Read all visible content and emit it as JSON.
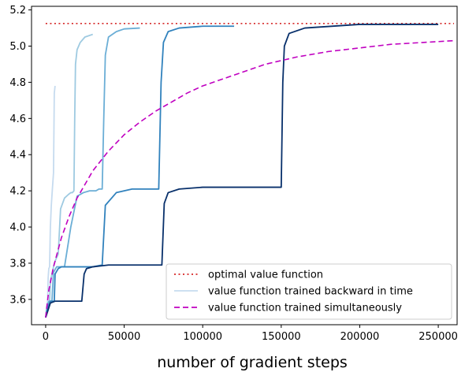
{
  "chart_data": {
    "type": "line",
    "title": "",
    "xlabel": "number of gradient steps",
    "ylabel": "",
    "xlim": [
      -9000,
      262000
    ],
    "ylim": [
      3.46,
      5.22
    ],
    "x_ticks": [
      0,
      50000,
      100000,
      150000,
      200000,
      250000
    ],
    "x_tick_labels": [
      "0",
      "50000",
      "100000",
      "150000",
      "200000",
      "250000"
    ],
    "y_ticks": [
      3.6,
      3.8,
      4.0,
      4.2,
      4.4,
      4.6,
      4.8,
      5.0,
      5.2
    ],
    "y_tick_labels": [
      "3.6",
      "3.8",
      "4.0",
      "4.2",
      "4.4",
      "4.6",
      "4.8",
      "5.0",
      "5.2"
    ],
    "grid": false,
    "legend_position": "bottom-right",
    "legend": [
      {
        "label": "optimal value function",
        "style": "dotted",
        "color": "#d62728"
      },
      {
        "label": "value function trained backward in time",
        "style": "solid",
        "color": "#c6dbef"
      },
      {
        "label": "value function trained simultaneously",
        "style": "dashed",
        "color": "#c000c0"
      }
    ],
    "series": [
      {
        "name": "optimal value function",
        "style": "dotted",
        "color": "#d62728",
        "x": [
          0,
          260000
        ],
        "y": [
          5.125,
          5.125
        ]
      },
      {
        "name": "value function trained backward in time",
        "style": "solid",
        "color": "#c6dbef",
        "x": [
          0,
          600,
          1200,
          1600,
          2000,
          2500,
          3000,
          3600,
          4200,
          5000,
          5500,
          6000
        ],
        "y": [
          3.5,
          3.56,
          3.59,
          3.72,
          3.77,
          3.78,
          4.0,
          4.12,
          4.2,
          4.3,
          4.74,
          4.78
        ]
      },
      {
        "x": [
          0,
          800,
          1500,
          2500,
          3000,
          5000,
          5600,
          6400,
          8000,
          9500,
          12000,
          14500,
          16000,
          17000,
          18000,
          18500,
          19000,
          20000,
          22000,
          25000,
          30000
        ],
        "y": [
          3.5,
          3.55,
          3.58,
          3.59,
          3.7,
          3.78,
          3.8,
          3.82,
          3.85,
          4.1,
          4.16,
          4.18,
          4.19,
          4.19,
          4.2,
          4.6,
          4.9,
          4.98,
          5.02,
          5.05,
          5.065
        ],
        "style": "solid",
        "color": "#9ecae1"
      },
      {
        "x": [
          0,
          1000,
          2000,
          4000,
          5000,
          7000,
          8000,
          12000,
          16000,
          20000,
          24000,
          28000,
          32000,
          34000,
          36000,
          37000,
          38000,
          40000,
          45000,
          50000,
          60000
        ],
        "y": [
          3.5,
          3.56,
          3.59,
          3.59,
          3.75,
          3.78,
          3.78,
          3.78,
          4.0,
          4.17,
          4.19,
          4.2,
          4.2,
          4.21,
          4.21,
          4.6,
          4.95,
          5.05,
          5.08,
          5.095,
          5.1
        ],
        "style": "solid",
        "color": "#6baed6"
      },
      {
        "x": [
          0,
          1500,
          3000,
          5500,
          6000,
          8000,
          10000,
          14000,
          30000,
          36000,
          38000,
          45000,
          55000,
          72000,
          73500,
          75000,
          78000,
          85000,
          100000,
          120000
        ],
        "y": [
          3.5,
          3.56,
          3.59,
          3.59,
          3.74,
          3.77,
          3.78,
          3.78,
          3.78,
          3.79,
          4.12,
          4.19,
          4.21,
          4.21,
          4.8,
          5.02,
          5.08,
          5.1,
          5.11,
          5.11
        ],
        "style": "solid",
        "color": "#3182bd"
      },
      {
        "x": [
          0,
          3000,
          6000,
          10000,
          20000,
          23000,
          24500,
          26000,
          30000,
          40000,
          60000,
          74000,
          75500,
          78000,
          85000,
          100000,
          150000,
          151000,
          152000,
          155000,
          165000,
          200000,
          250000
        ],
        "y": [
          3.5,
          3.58,
          3.59,
          3.59,
          3.59,
          3.59,
          3.74,
          3.77,
          3.78,
          3.79,
          3.79,
          3.79,
          4.13,
          4.19,
          4.21,
          4.22,
          4.22,
          4.8,
          5.0,
          5.07,
          5.1,
          5.12,
          5.12
        ],
        "style": "solid",
        "color": "#08306b"
      },
      {
        "name": "value function trained simultaneously",
        "style": "dashed",
        "color": "#c000c0",
        "x": [
          0,
          2000,
          5000,
          10000,
          15000,
          20000,
          30000,
          40000,
          50000,
          60000,
          70000,
          80000,
          90000,
          100000,
          120000,
          140000,
          160000,
          180000,
          200000,
          220000,
          240000,
          260000
        ],
        "y": [
          3.5,
          3.65,
          3.78,
          3.94,
          4.06,
          4.16,
          4.31,
          4.42,
          4.51,
          4.58,
          4.64,
          4.69,
          4.74,
          4.78,
          4.84,
          4.9,
          4.94,
          4.97,
          4.99,
          5.01,
          5.02,
          5.03
        ]
      }
    ]
  }
}
